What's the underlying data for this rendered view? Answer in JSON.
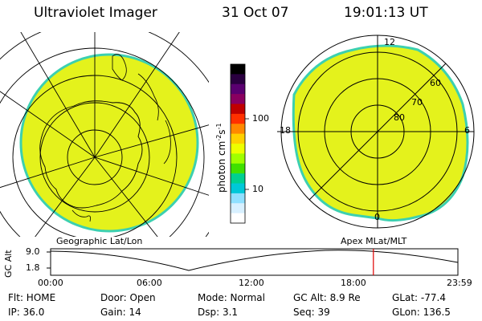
{
  "header": {
    "instrument": "Ultraviolet Imager",
    "date": "31 Oct 07",
    "time": "19:01:13 UT"
  },
  "left_panel": {
    "caption": "Geographic Lat/Lon"
  },
  "right_panel": {
    "caption": "Apex  MLat/MLT",
    "mlt_labels": [
      "12",
      "18",
      "6",
      "0"
    ],
    "lat_labels": [
      "60",
      "70",
      "80"
    ]
  },
  "colorbar": {
    "unit_label": "photon cm",
    "unit_sup1": "-2",
    "unit_mid": "s",
    "unit_sup2": "-1",
    "ticks": [
      "100",
      "10"
    ],
    "colors": [
      "#000000",
      "#2a0040",
      "#5a0070",
      "#8a0060",
      "#c00000",
      "#ff3000",
      "#ff8800",
      "#ffd000",
      "#eeff00",
      "#a0ff00",
      "#40e000",
      "#00d090",
      "#00c8d8",
      "#90e0ff",
      "#d8f0ff",
      "#ffffff"
    ]
  },
  "timeline": {
    "ylabel": "GC Alt",
    "y_ticks": [
      "9.0",
      "1.8"
    ],
    "x_ticks": [
      "00:00",
      "06:00",
      "12:00",
      "18:00",
      "23:59"
    ],
    "current_marker_hour": 19.02
  },
  "status": {
    "flt": "Flt: HOME",
    "ip": "IP: 36.0",
    "door": "Door: Open",
    "gain": "Gain: 14",
    "mode": "Mode: Normal",
    "dsp": "Dsp:      3.1",
    "gcalt": "GC Alt: 8.9 Re",
    "seq": "Seq: 39",
    "glat": "GLat: -77.4",
    "glon": "GLon: 136.5"
  },
  "colors": {
    "fill": "#e4f21c",
    "edge": "#3cd0b0",
    "marker": "#e00000"
  }
}
